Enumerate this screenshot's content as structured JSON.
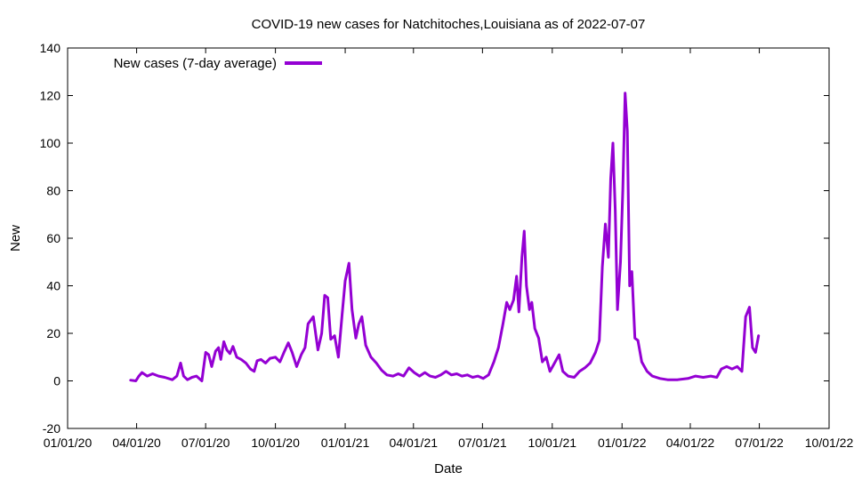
{
  "chart_data": {
    "type": "line",
    "title": "COVID-19 new cases for Natchitoches,Louisiana as of 2022-07-07",
    "xlabel": "Date",
    "ylabel": "New",
    "xlim": [
      "2020-01-01",
      "2022-10-01"
    ],
    "ylim": [
      -20,
      140
    ],
    "y_ticks": [
      -20,
      0,
      20,
      40,
      60,
      80,
      100,
      120,
      140
    ],
    "x_ticks": [
      {
        "date": "2020-01-01",
        "label": "01/01/20"
      },
      {
        "date": "2020-04-01",
        "label": "04/01/20"
      },
      {
        "date": "2020-07-01",
        "label": "07/01/20"
      },
      {
        "date": "2020-10-01",
        "label": "10/01/20"
      },
      {
        "date": "2021-01-01",
        "label": "01/01/21"
      },
      {
        "date": "2021-04-01",
        "label": "04/01/21"
      },
      {
        "date": "2021-07-01",
        "label": "07/01/21"
      },
      {
        "date": "2021-10-01",
        "label": "10/01/21"
      },
      {
        "date": "2022-01-01",
        "label": "01/01/22"
      },
      {
        "date": "2022-04-01",
        "label": "04/01/22"
      },
      {
        "date": "2022-07-01",
        "label": "07/01/22"
      },
      {
        "date": "2022-10-01",
        "label": "10/01/22"
      }
    ],
    "grid": false,
    "legend_position": "top-left",
    "series": [
      {
        "name": "New cases (7-day average)",
        "color": "#9400d3",
        "points": [
          [
            "2020-03-24",
            0.3
          ],
          [
            "2020-03-31",
            0.0
          ],
          [
            "2020-04-04",
            2.0
          ],
          [
            "2020-04-08",
            3.5
          ],
          [
            "2020-04-15",
            2.0
          ],
          [
            "2020-04-22",
            3.0
          ],
          [
            "2020-04-30",
            2.0
          ],
          [
            "2020-05-08",
            1.5
          ],
          [
            "2020-05-18",
            0.5
          ],
          [
            "2020-05-24",
            2.0
          ],
          [
            "2020-05-29",
            7.5
          ],
          [
            "2020-06-02",
            2.0
          ],
          [
            "2020-06-07",
            0.5
          ],
          [
            "2020-06-13",
            1.5
          ],
          [
            "2020-06-19",
            2.0
          ],
          [
            "2020-06-26",
            0.0
          ],
          [
            "2020-07-01",
            12.0
          ],
          [
            "2020-07-05",
            11.0
          ],
          [
            "2020-07-09",
            6.0
          ],
          [
            "2020-07-14",
            12.5
          ],
          [
            "2020-07-18",
            14.0
          ],
          [
            "2020-07-21",
            9.0
          ],
          [
            "2020-07-25",
            16.5
          ],
          [
            "2020-07-29",
            13.0
          ],
          [
            "2020-08-02",
            11.5
          ],
          [
            "2020-08-06",
            14.5
          ],
          [
            "2020-08-11",
            10.0
          ],
          [
            "2020-08-17",
            9.0
          ],
          [
            "2020-08-23",
            7.5
          ],
          [
            "2020-08-29",
            5.0
          ],
          [
            "2020-09-03",
            4.0
          ],
          [
            "2020-09-07",
            8.5
          ],
          [
            "2020-09-12",
            9.0
          ],
          [
            "2020-09-18",
            7.5
          ],
          [
            "2020-09-24",
            9.5
          ],
          [
            "2020-10-01",
            10.0
          ],
          [
            "2020-10-07",
            8.0
          ],
          [
            "2020-10-13",
            12.5
          ],
          [
            "2020-10-18",
            16.0
          ],
          [
            "2020-10-23",
            12.0
          ],
          [
            "2020-10-29",
            6.0
          ],
          [
            "2020-11-04",
            11.0
          ],
          [
            "2020-11-09",
            14.0
          ],
          [
            "2020-11-13",
            24.0
          ],
          [
            "2020-11-20",
            27.0
          ],
          [
            "2020-11-26",
            13.0
          ],
          [
            "2020-12-01",
            20.0
          ],
          [
            "2020-12-05",
            36.0
          ],
          [
            "2020-12-09",
            35.0
          ],
          [
            "2020-12-13",
            17.5
          ],
          [
            "2020-12-18",
            19.0
          ],
          [
            "2020-12-23",
            10.0
          ],
          [
            "2020-12-28",
            28.0
          ],
          [
            "2021-01-01",
            42.0
          ],
          [
            "2021-01-06",
            49.5
          ],
          [
            "2021-01-10",
            30.0
          ],
          [
            "2021-01-15",
            18.0
          ],
          [
            "2021-01-19",
            24.0
          ],
          [
            "2021-01-23",
            27.0
          ],
          [
            "2021-01-28",
            15.0
          ],
          [
            "2021-02-04",
            10.0
          ],
          [
            "2021-02-11",
            7.5
          ],
          [
            "2021-02-18",
            4.5
          ],
          [
            "2021-02-25",
            2.5
          ],
          [
            "2021-03-05",
            2.0
          ],
          [
            "2021-03-12",
            3.0
          ],
          [
            "2021-03-19",
            2.0
          ],
          [
            "2021-03-26",
            5.5
          ],
          [
            "2021-04-02",
            3.5
          ],
          [
            "2021-04-09",
            2.0
          ],
          [
            "2021-04-16",
            3.5
          ],
          [
            "2021-04-23",
            2.0
          ],
          [
            "2021-04-30",
            1.5
          ],
          [
            "2021-05-07",
            2.5
          ],
          [
            "2021-05-14",
            4.0
          ],
          [
            "2021-05-21",
            2.5
          ],
          [
            "2021-05-28",
            3.0
          ],
          [
            "2021-06-04",
            2.0
          ],
          [
            "2021-06-11",
            2.5
          ],
          [
            "2021-06-18",
            1.5
          ],
          [
            "2021-06-25",
            2.0
          ],
          [
            "2021-07-02",
            1.0
          ],
          [
            "2021-07-09",
            2.5
          ],
          [
            "2021-07-16",
            8.0
          ],
          [
            "2021-07-22",
            14.0
          ],
          [
            "2021-07-28",
            24.0
          ],
          [
            "2021-08-02",
            33.0
          ],
          [
            "2021-08-06",
            30.0
          ],
          [
            "2021-08-11",
            34.0
          ],
          [
            "2021-08-15",
            44.0
          ],
          [
            "2021-08-18",
            29.0
          ],
          [
            "2021-08-22",
            52.0
          ],
          [
            "2021-08-25",
            63.0
          ],
          [
            "2021-08-28",
            40.0
          ],
          [
            "2021-09-01",
            30.0
          ],
          [
            "2021-09-04",
            33.0
          ],
          [
            "2021-09-08",
            22.0
          ],
          [
            "2021-09-13",
            18.0
          ],
          [
            "2021-09-18",
            8.0
          ],
          [
            "2021-09-23",
            10.0
          ],
          [
            "2021-09-28",
            4.0
          ],
          [
            "2021-10-04",
            7.5
          ],
          [
            "2021-10-10",
            11.0
          ],
          [
            "2021-10-15",
            4.0
          ],
          [
            "2021-10-22",
            2.0
          ],
          [
            "2021-10-30",
            1.5
          ],
          [
            "2021-11-06",
            4.0
          ],
          [
            "2021-11-13",
            5.5
          ],
          [
            "2021-11-20",
            7.5
          ],
          [
            "2021-11-27",
            12.0
          ],
          [
            "2021-12-02",
            17.0
          ],
          [
            "2021-12-06",
            48.0
          ],
          [
            "2021-12-10",
            66.0
          ],
          [
            "2021-12-14",
            52.0
          ],
          [
            "2021-12-17",
            85.0
          ],
          [
            "2021-12-20",
            100.0
          ],
          [
            "2021-12-23",
            72.0
          ],
          [
            "2021-12-26",
            30.0
          ],
          [
            "2021-12-30",
            50.0
          ],
          [
            "2022-01-02",
            80.0
          ],
          [
            "2022-01-05",
            121.0
          ],
          [
            "2022-01-08",
            105.0
          ],
          [
            "2022-01-11",
            40.0
          ],
          [
            "2022-01-14",
            46.0
          ],
          [
            "2022-01-18",
            18.0
          ],
          [
            "2022-01-22",
            17.0
          ],
          [
            "2022-01-27",
            8.0
          ],
          [
            "2022-02-03",
            4.0
          ],
          [
            "2022-02-10",
            2.0
          ],
          [
            "2022-02-20",
            1.0
          ],
          [
            "2022-03-02",
            0.5
          ],
          [
            "2022-03-15",
            0.5
          ],
          [
            "2022-03-29",
            1.0
          ],
          [
            "2022-04-08",
            2.0
          ],
          [
            "2022-04-18",
            1.5
          ],
          [
            "2022-04-28",
            2.0
          ],
          [
            "2022-05-06",
            1.5
          ],
          [
            "2022-05-12",
            5.0
          ],
          [
            "2022-05-19",
            6.0
          ],
          [
            "2022-05-26",
            5.0
          ],
          [
            "2022-06-02",
            6.0
          ],
          [
            "2022-06-08",
            4.0
          ],
          [
            "2022-06-13",
            27.0
          ],
          [
            "2022-06-18",
            31.0
          ],
          [
            "2022-06-22",
            14.0
          ],
          [
            "2022-06-26",
            12.0
          ],
          [
            "2022-06-30",
            19.0
          ]
        ]
      }
    ]
  }
}
